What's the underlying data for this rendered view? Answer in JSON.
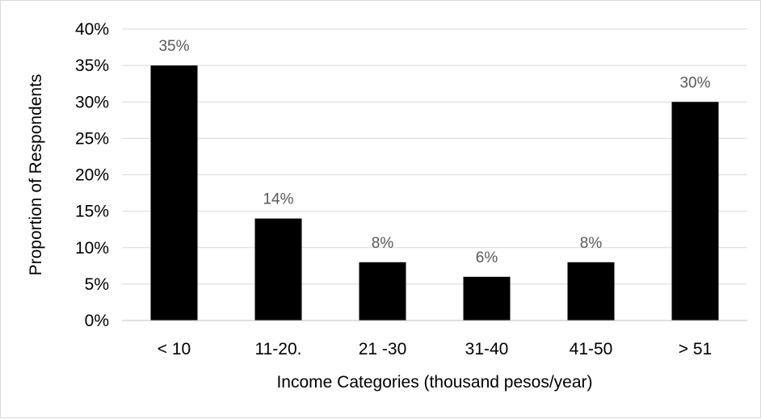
{
  "chart_data": {
    "type": "bar",
    "title": "",
    "xlabel": "Income Categories (thousand pesos/year)",
    "ylabel": "Proportion of Respondents",
    "categories": [
      "< 10",
      "11-20.",
      "21 -30",
      "31-40",
      "41-50",
      "> 51"
    ],
    "values": [
      35,
      14,
      8,
      6,
      8,
      30
    ],
    "data_labels": [
      "35%",
      "14%",
      "8%",
      "6%",
      "8%",
      "30%"
    ],
    "ylim": [
      0,
      40
    ],
    "yticks": [
      0,
      5,
      10,
      15,
      20,
      25,
      30,
      35,
      40
    ],
    "ytick_labels": [
      "0%",
      "5%",
      "10%",
      "15%",
      "20%",
      "25%",
      "30%",
      "35%",
      "40%"
    ],
    "grid": true,
    "legend": "none",
    "colors": {
      "bar": "#000000",
      "grid": "#d9d9d9",
      "data_label": "#595959",
      "axis": "#bfbfbf"
    }
  }
}
